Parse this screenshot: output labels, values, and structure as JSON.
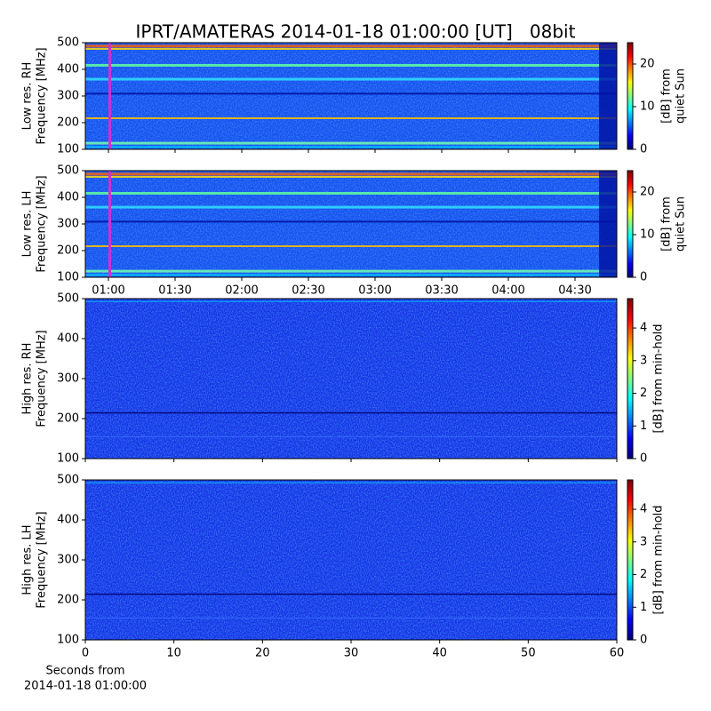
{
  "chart_data": [
    {
      "type": "spectrogram",
      "title": "IPRT/AMATERAS 2014-01-18 01:00:00 [UT]   08bit",
      "ylabel": [
        "Low res. RH",
        "Frequency [MHz]"
      ],
      "ylim": [
        100,
        500
      ],
      "yticks": [
        100,
        200,
        300,
        400,
        500
      ],
      "xlim": [
        49.6,
        288.8
      ],
      "cursor": [
        60,
        61.2
      ],
      "cursor_color": "#cc33cc",
      "clabel": [
        "[dB] from",
        "quiet Sun"
      ],
      "clim": [
        0,
        25
      ],
      "cticks": [
        0,
        10,
        20
      ]
    },
    {
      "type": "spectrogram",
      "ylabel": [
        "Low res. LH",
        "Frequency [MHz]"
      ],
      "ylim": [
        100,
        500
      ],
      "yticks": [
        100,
        200,
        300,
        400,
        500
      ],
      "xlim": [
        49.6,
        288.8
      ],
      "cursor": [
        60,
        61.2
      ],
      "cursor_color": "#cc33cc",
      "xticks": [
        {
          "value": 60,
          "label": "01:00"
        },
        {
          "value": 90,
          "label": "01:30"
        },
        {
          "value": 120,
          "label": "02:00"
        },
        {
          "value": 150,
          "label": "02:30"
        },
        {
          "value": 180,
          "label": "03:00"
        },
        {
          "value": 210,
          "label": "03:30"
        },
        {
          "value": 240,
          "label": "04:00"
        },
        {
          "value": 270,
          "label": "04:30"
        }
      ],
      "clabel": [
        "[dB] from",
        "quiet Sun"
      ],
      "clim": [
        0,
        25
      ],
      "cticks": [
        0,
        10,
        20
      ]
    },
    {
      "type": "spectrogram",
      "ylabel": [
        "High res. RH",
        "Frequency [MHz]"
      ],
      "ylim": [
        100,
        500
      ],
      "yticks": [
        100,
        200,
        300,
        400,
        500
      ],
      "xlim": [
        0,
        60
      ],
      "clabel": [
        "[dB] from min-hold"
      ],
      "clim": [
        0,
        4.9
      ],
      "cticks": [
        0,
        1,
        2,
        3,
        4
      ]
    },
    {
      "type": "spectrogram",
      "ylabel": [
        "High res. LH",
        "Frequency [MHz]"
      ],
      "ylim": [
        100,
        500
      ],
      "yticks": [
        100,
        200,
        300,
        400,
        500
      ],
      "xlim": [
        0,
        60
      ],
      "xticks": [
        0,
        10,
        20,
        30,
        40,
        50,
        60
      ],
      "xlabel": [
        "Seconds from",
        "2014-01-18 01:00:00"
      ],
      "clabel": [
        "[dB] from min-hold"
      ],
      "clim": [
        0,
        4.9
      ],
      "cticks": [
        0,
        1,
        2,
        3,
        4
      ]
    }
  ]
}
